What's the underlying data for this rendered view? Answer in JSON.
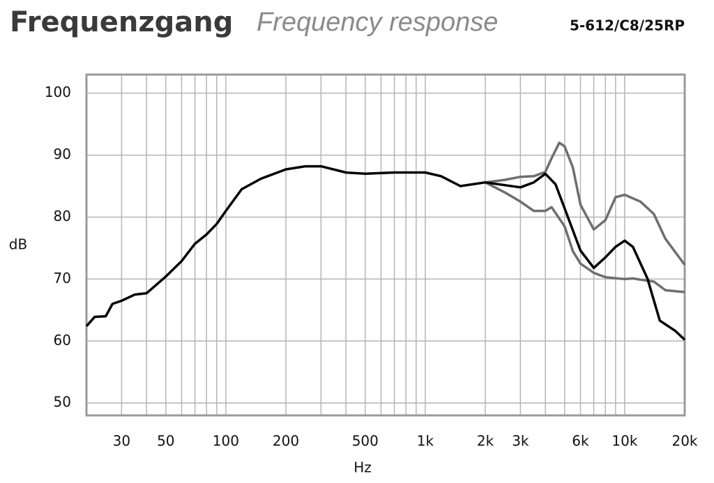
{
  "chart_data": {
    "type": "line",
    "title": "Frequenzgang",
    "subtitle": "Frequency response",
    "model": "5-612/C8/25RP",
    "x_label": "Hz",
    "y_label": "dB",
    "log_x": true,
    "xlim": [
      20,
      20000
    ],
    "ylim": [
      48,
      103
    ],
    "xticks": [
      30,
      50,
      100,
      200,
      500,
      {
        "value": 1000,
        "label": "1k"
      },
      {
        "value": 2000,
        "label": "2k"
      },
      {
        "value": 3000,
        "label": "3k"
      },
      {
        "value": 6000,
        "label": "6k"
      },
      {
        "value": 10000,
        "label": "10k"
      },
      {
        "value": 20000,
        "label": "20k"
      }
    ],
    "xgrid": [
      30,
      40,
      50,
      60,
      70,
      80,
      90,
      100,
      200,
      300,
      400,
      500,
      600,
      700,
      800,
      900,
      1000,
      2000,
      3000,
      4000,
      5000,
      6000,
      7000,
      8000,
      9000,
      10000
    ],
    "yticks": [
      50,
      60,
      70,
      80,
      90,
      100
    ],
    "grid": true,
    "series": [
      {
        "color": "#6e6e6e",
        "x": [
          2000,
          2500,
          3000,
          3500,
          4000,
          4300,
          4700,
          5000,
          5500,
          6000,
          7000,
          8000,
          9000,
          10000,
          12000,
          14000,
          16000,
          20000
        ],
        "values": [
          85.6,
          86.0,
          86.5,
          86.6,
          87.3,
          89.5,
          92,
          91.4,
          88,
          82,
          78,
          79.5,
          83.2,
          83.6,
          82.5,
          80.5,
          76.5,
          72.3
        ]
      },
      {
        "color": "#6e6e6e",
        "x": [
          2000,
          2500,
          3000,
          3500,
          4000,
          4300,
          5000,
          5500,
          6000,
          7000,
          8000,
          10000,
          11000,
          12000,
          14000,
          16000,
          20000
        ],
        "values": [
          85.6,
          84,
          82.5,
          81,
          81,
          81.6,
          78.5,
          74.5,
          72.5,
          71,
          70.3,
          70,
          70.1,
          69.9,
          69.6,
          68.2,
          67.9
        ]
      },
      {
        "color": "#000000",
        "x": [
          20,
          22,
          25,
          27,
          30,
          35,
          40,
          50,
          60,
          70,
          80,
          90,
          100,
          120,
          150,
          200,
          250,
          300,
          400,
          500,
          700,
          1000,
          1200,
          1500,
          2000,
          3000,
          3500,
          4000,
          4500,
          5000,
          6000,
          7000,
          8000,
          9000,
          10000,
          11000,
          13000,
          15000,
          18000,
          20000
        ],
        "values": [
          62.4,
          63.9,
          64,
          66,
          66.5,
          67.5,
          67.7,
          70.4,
          72.9,
          75.7,
          77.2,
          78.9,
          81,
          84.5,
          86.2,
          87.7,
          88.2,
          88.2,
          87.2,
          87,
          87.2,
          87.2,
          86.6,
          85,
          85.6,
          84.8,
          85.6,
          87,
          85.3,
          81.4,
          74.6,
          71.8,
          73.5,
          75.2,
          76.2,
          75.2,
          70.1,
          63.3,
          61.6,
          60.2
        ]
      }
    ]
  }
}
